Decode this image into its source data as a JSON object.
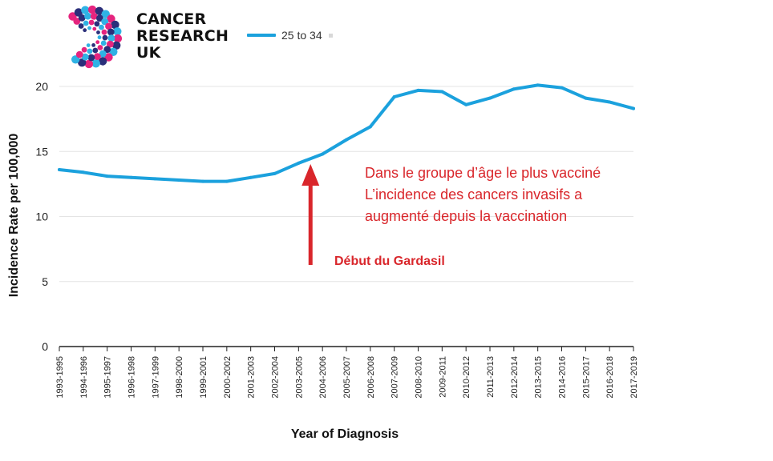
{
  "brand": {
    "line1": "CANCER",
    "line2": "RESEARCH",
    "line3": "UK"
  },
  "colors": {
    "series": "#1ba1dd",
    "annotation": "#d9262b",
    "logo_pink": "#e5247e",
    "logo_navy": "#2b2f7a",
    "logo_cyan": "#2fb2e4"
  },
  "annotation": {
    "line1": "Dans le groupe d’âge le plus vacciné",
    "line2": "L’incidence des cancers invasifs a",
    "line3": "augmenté depuis la vaccination",
    "arrow_label": "Début du Gardasil",
    "arrow_category": "2004-2006"
  },
  "chart_data": {
    "type": "line",
    "title": "",
    "xlabel": "Year of Diagnosis",
    "ylabel": "Incidence Rate per 100,000",
    "ylim": [
      0,
      20
    ],
    "yticks": [
      0,
      5,
      10,
      15,
      20
    ],
    "grid": true,
    "legend_position": "top",
    "categories": [
      "1993-1995",
      "1994-1996",
      "1995-1997",
      "1996-1998",
      "1997-1999",
      "1998-2000",
      "1999-2001",
      "2000-2002",
      "2001-2003",
      "2002-2004",
      "2003-2005",
      "2004-2006",
      "2005-2007",
      "2006-2008",
      "2007-2009",
      "2008-2010",
      "2009-2011",
      "2010-2012",
      "2011-2013",
      "2012-2014",
      "2013-2015",
      "2014-2016",
      "2015-2017",
      "2016-2018",
      "2017-2019"
    ],
    "series": [
      {
        "name": "25 to 34",
        "values": [
          13.6,
          13.4,
          13.1,
          13.0,
          12.9,
          12.8,
          12.7,
          12.7,
          13.0,
          13.3,
          14.1,
          14.8,
          15.9,
          16.9,
          19.2,
          19.7,
          19.6,
          18.6,
          19.1,
          19.8,
          20.1,
          19.9,
          19.1,
          18.8,
          18.3
        ]
      }
    ]
  }
}
